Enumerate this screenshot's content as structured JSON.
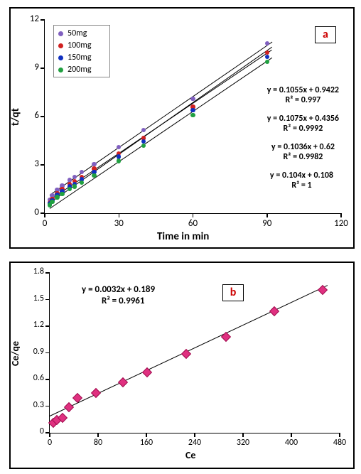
{
  "panelA": {
    "tag": "a",
    "tag_color": "#cc0000",
    "bg_color": "#ffffff",
    "border_color": "#000000",
    "axis_color": "#000000",
    "xlabel": "Time in min",
    "ylabel": "t/qt",
    "xlim": [
      0,
      120
    ],
    "ylim": [
      0,
      12
    ],
    "xticks": [
      0,
      30,
      60,
      90,
      120
    ],
    "yticks": [
      0,
      3,
      6,
      9,
      12
    ],
    "tick_fontsize": 13,
    "label_fontsize": 15,
    "legend_fontsize": 12,
    "series": [
      {
        "label": "50mg",
        "color": "#8060c0",
        "x": [
          2,
          3,
          5,
          7,
          10,
          12,
          15,
          20,
          30,
          40,
          60,
          90
        ],
        "y": [
          0.85,
          1.1,
          1.45,
          1.7,
          2.05,
          2.25,
          2.55,
          3.05,
          4.1,
          5.15,
          7.1,
          10.55
        ]
      },
      {
        "label": "100mg",
        "color": "#d02020",
        "x": [
          2,
          3,
          5,
          7,
          10,
          12,
          15,
          20,
          30,
          40,
          60,
          90
        ],
        "y": [
          0.65,
          0.88,
          1.22,
          1.48,
          1.8,
          1.98,
          2.25,
          2.75,
          3.7,
          4.65,
          6.6,
          9.98
        ]
      },
      {
        "label": "150mg",
        "color": "#1030c0",
        "x": [
          2,
          3,
          5,
          7,
          10,
          12,
          15,
          20,
          30,
          40,
          60,
          90
        ],
        "y": [
          0.6,
          0.8,
          1.12,
          1.35,
          1.65,
          1.82,
          2.1,
          2.57,
          3.5,
          4.45,
          6.4,
          9.7
        ]
      },
      {
        "label": "200mg",
        "color": "#20a040",
        "x": [
          2,
          3,
          5,
          7,
          10,
          12,
          15,
          20,
          30,
          40,
          60,
          90
        ],
        "y": [
          0.5,
          0.7,
          1.0,
          1.2,
          1.5,
          1.65,
          1.9,
          2.35,
          3.25,
          4.2,
          6.1,
          9.4
        ]
      }
    ],
    "trendlines": [
      {
        "slope": 0.1055,
        "intercept": 0.9422
      },
      {
        "slope": 0.1075,
        "intercept": 0.4356
      },
      {
        "slope": 0.1036,
        "intercept": 0.62
      },
      {
        "slope": 0.104,
        "intercept": 0.108
      }
    ],
    "equations": [
      {
        "eq": "y = 0.1055x + 0.9422",
        "r2": "R² = 0.997"
      },
      {
        "eq": "y = 0.1075x + 0.4356",
        "r2": "R² = 0.9992"
      },
      {
        "eq": "y = 0.1036x + 0.62",
        "r2": "R² = 0.9982"
      },
      {
        "eq": "y = 0.104x + 0.108",
        "r2": "R² = 1"
      }
    ],
    "eq_fontsize": 12
  },
  "panelB": {
    "tag": "b",
    "tag_color": "#cc0000",
    "bg_color": "#ffffff",
    "border_color": "#000000",
    "axis_color": "#000000",
    "xlabel": "Ce",
    "ylabel": "Ce/qe",
    "xlim": [
      0,
      480
    ],
    "ylim": [
      0,
      1.8
    ],
    "xticks": [
      0,
      80,
      160,
      240,
      320,
      400,
      480
    ],
    "yticks": [
      0,
      0.3,
      0.6,
      0.9,
      1.2,
      1.5,
      1.8
    ],
    "tick_fontsize": 12,
    "label_fontsize": 14,
    "marker_color": "#e03080",
    "marker_border": "#a01050",
    "marker_size": 8,
    "series": {
      "x": [
        5,
        10,
        20,
        30,
        45,
        75,
        120,
        160,
        225,
        290,
        370,
        450
      ],
      "y": [
        0.12,
        0.15,
        0.18,
        0.3,
        0.4,
        0.46,
        0.58,
        0.69,
        0.9,
        1.09,
        1.38,
        1.62
      ]
    },
    "trendline": {
      "slope": 0.0032,
      "intercept": 0.189,
      "color": "#000000"
    },
    "equation": {
      "eq": "y = 0.0032x + 0.189",
      "r2": "R² = 0.9961",
      "fontsize": 13
    }
  }
}
